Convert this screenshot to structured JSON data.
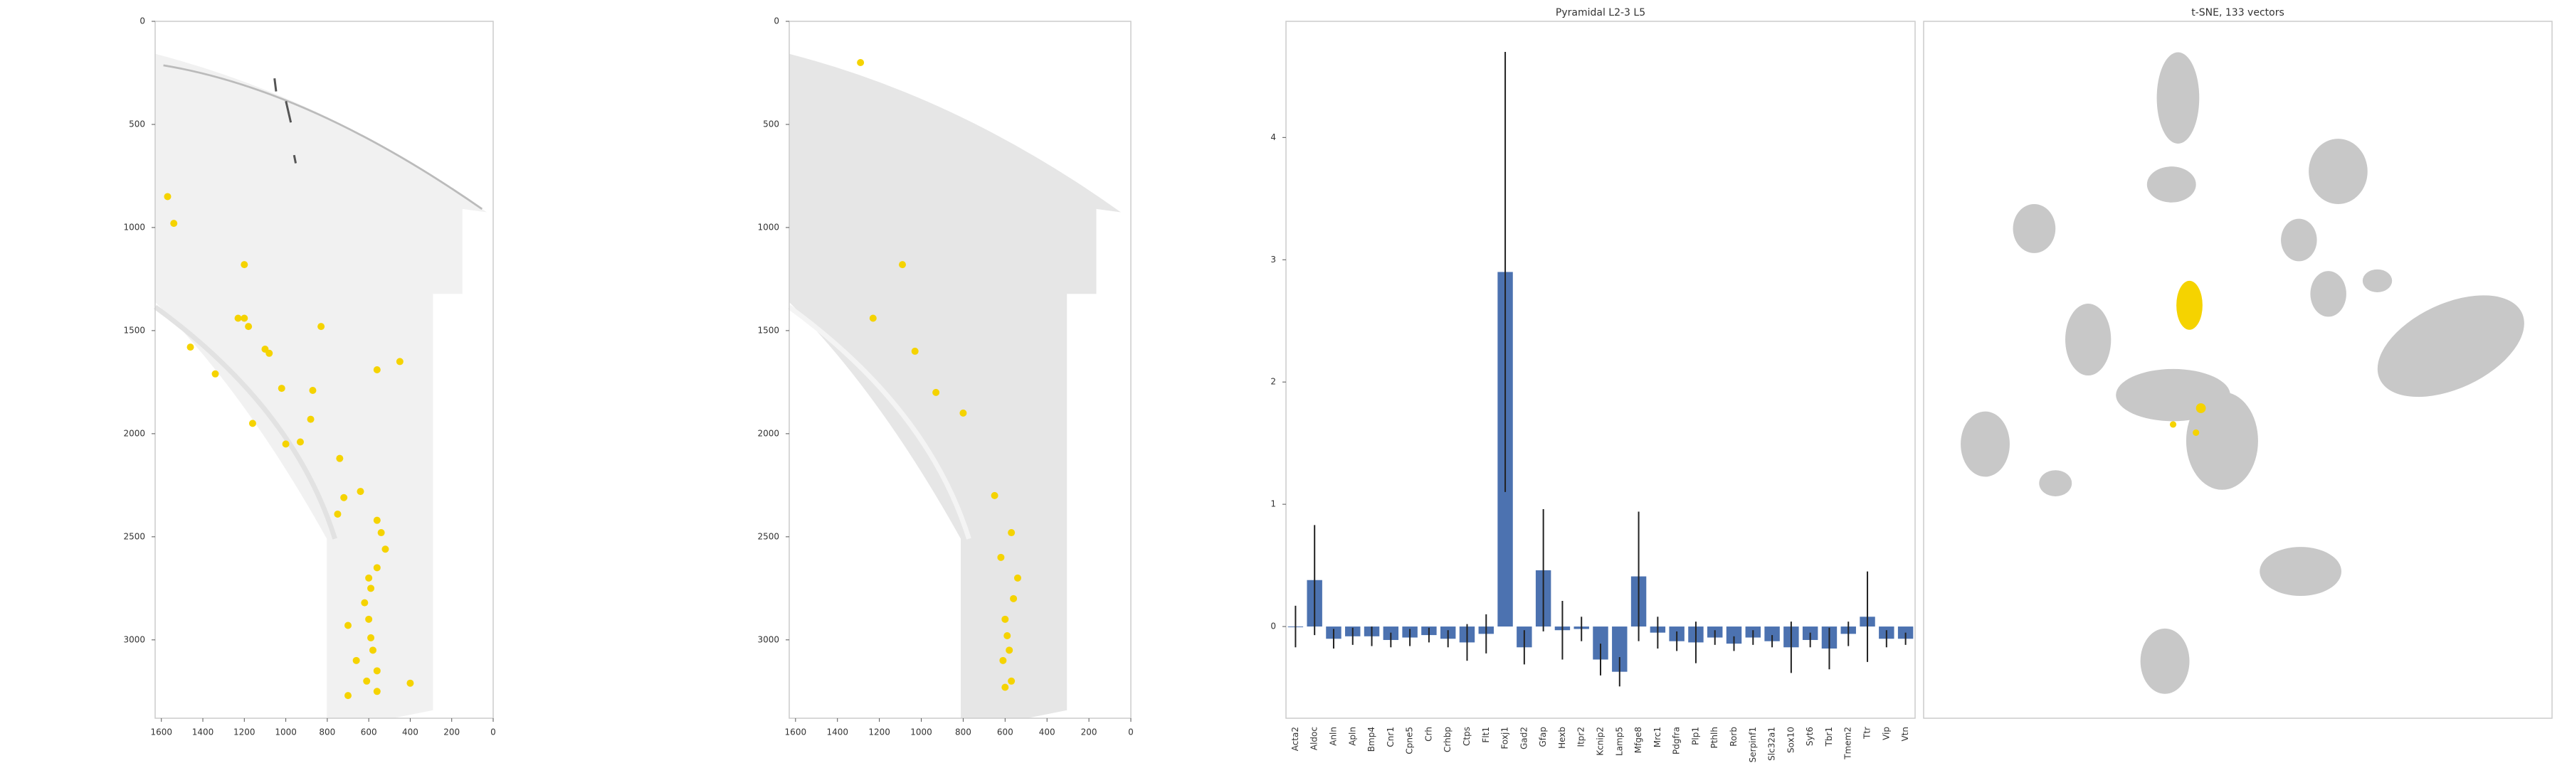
{
  "chart_data": [
    {
      "type": "scatter",
      "xlim": [
        1630,
        0
      ],
      "ylim": [
        3380,
        0
      ],
      "xticks": [
        1600,
        1400,
        1200,
        1000,
        800,
        600,
        400,
        200,
        0
      ],
      "yticks": [
        0,
        500,
        1000,
        1500,
        2000,
        2500,
        3000
      ],
      "series": [
        {
          "color": "#f5d300",
          "x": [
            1570,
            1540,
            1200,
            1230,
            1200,
            1100,
            1340,
            1080,
            1020,
            870,
            880,
            740,
            640,
            560,
            520,
            560,
            590,
            600,
            580,
            610,
            560,
            400,
            700,
            660,
            700,
            750,
            720,
            930,
            1000,
            1160,
            1460,
            1180,
            830,
            560,
            450,
            600,
            540,
            620,
            590,
            560
          ],
          "y": [
            850,
            980,
            1180,
            1440,
            1440,
            1590,
            1710,
            1610,
            1780,
            1790,
            1930,
            2120,
            2280,
            2420,
            2560,
            2650,
            2750,
            2900,
            3050,
            3200,
            3250,
            3210,
            3270,
            3100,
            2930,
            2390,
            2310,
            2040,
            2050,
            1950,
            1580,
            1480,
            1480,
            1690,
            1650,
            2700,
            2480,
            2820,
            2990,
            3150
          ]
        }
      ]
    },
    {
      "type": "scatter",
      "xlim": [
        1630,
        0
      ],
      "ylim": [
        3380,
        0
      ],
      "xticks": [
        1600,
        1400,
        1200,
        1000,
        800,
        600,
        400,
        200,
        0
      ],
      "yticks": [
        0,
        500,
        1000,
        1500,
        2000,
        2500,
        3000
      ],
      "series": [
        {
          "color": "#f5d300",
          "x": [
            1230,
            1030,
            930,
            800,
            650,
            570,
            540,
            600,
            580,
            570,
            600,
            1290,
            1090,
            620,
            560,
            610,
            590
          ],
          "y": [
            1440,
            1600,
            1800,
            1900,
            2300,
            2480,
            2700,
            2900,
            3050,
            3200,
            3230,
            200,
            1180,
            2600,
            2800,
            3100,
            2980
          ]
        }
      ]
    },
    {
      "type": "bar",
      "title": "Pyramidal L2-3 L5",
      "categories": [
        "Acta2",
        "Aldoc",
        "Anln",
        "Apln",
        "Bmp4",
        "Cnr1",
        "Cpne5",
        "Crh",
        "Crhbp",
        "Ctps",
        "Flt1",
        "Foxj1",
        "Gad2",
        "Gfap",
        "Hexb",
        "Itpr2",
        "Kcnip2",
        "Lamp5",
        "Mfge8",
        "Mrc1",
        "Pdgfra",
        "Plp1",
        "Pthlh",
        "Rorb",
        "Serpinf1",
        "Slc32a1",
        "Sox10",
        "Syt6",
        "Tbr1",
        "Tmem2",
        "Ttr",
        "Vip",
        "Vtn"
      ],
      "values": [
        0,
        0.38,
        -0.1,
        -0.08,
        -0.08,
        -0.11,
        -0.09,
        -0.07,
        -0.1,
        -0.13,
        -0.06,
        2.9,
        -0.17,
        0.46,
        -0.03,
        -0.02,
        -0.27,
        -0.37,
        0.41,
        -0.05,
        -0.12,
        -0.13,
        -0.09,
        -0.14,
        -0.09,
        -0.12,
        -0.17,
        -0.11,
        -0.18,
        -0.06,
        0.08,
        -0.1,
        -0.1
      ],
      "errors": [
        0.17,
        0.45,
        0.08,
        0.07,
        0.08,
        0.06,
        0.07,
        0.06,
        0.07,
        0.15,
        0.16,
        1.8,
        0.14,
        0.5,
        0.24,
        0.1,
        0.13,
        0.12,
        0.53,
        0.13,
        0.08,
        0.17,
        0.06,
        0.06,
        0.06,
        0.05,
        0.21,
        0.06,
        0.17,
        0.1,
        0.37,
        0.07,
        0.05
      ],
      "color": "#4c72b0",
      "ylim": [
        -0.75,
        4.95
      ],
      "yticks": [
        0,
        1,
        2,
        3,
        4
      ]
    },
    {
      "type": "scatter",
      "title": "t-SNE, 133 vectors"
    }
  ]
}
